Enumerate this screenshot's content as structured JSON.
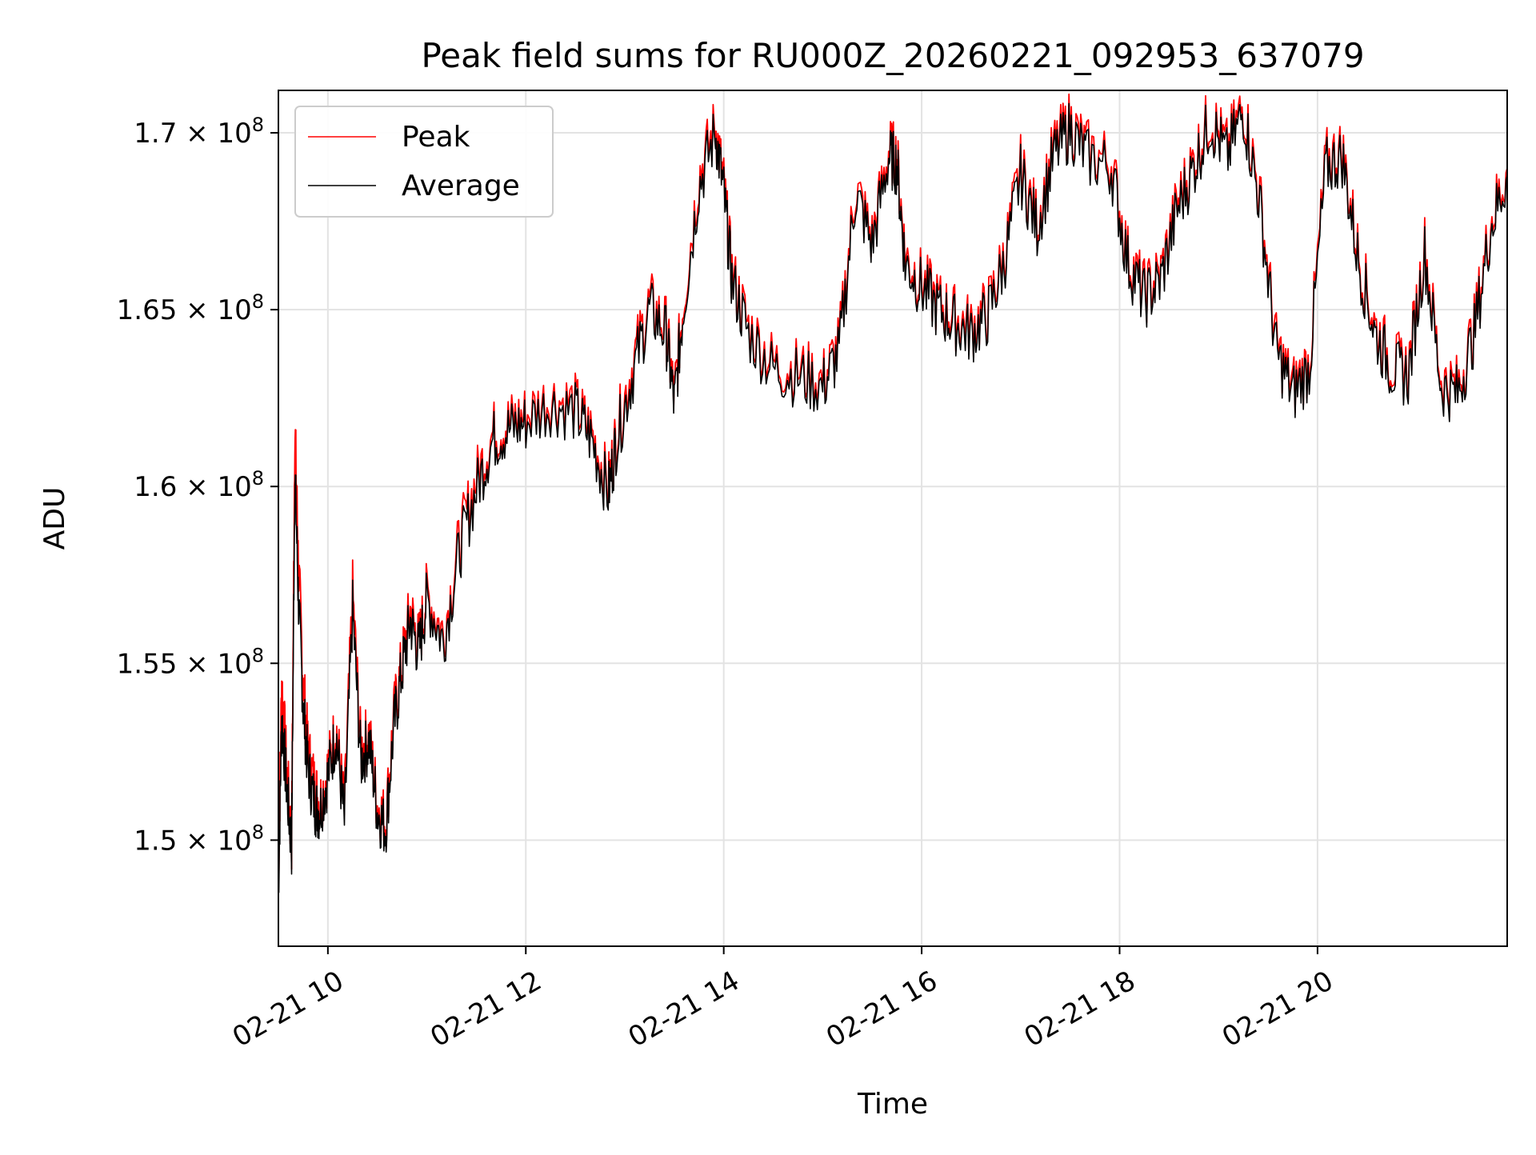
{
  "chart_data": {
    "type": "line",
    "title": "Peak field sums for RU000Z_20260221_092953_637079",
    "xlabel": "Time",
    "ylabel": "ADU",
    "x_type": "datetime",
    "xlim": [
      "2026-02-21 09:30",
      "2026-02-21 21:55"
    ],
    "ylim": [
      147000000,
      171200000
    ],
    "x_ticks": [
      "2026-02-21 10:00",
      "2026-02-21 12:00",
      "2026-02-21 14:00",
      "2026-02-21 16:00",
      "2026-02-21 18:00",
      "2026-02-21 20:00"
    ],
    "x_tick_labels": [
      "02-21 10",
      "02-21 12",
      "02-21 14",
      "02-21 16",
      "02-21 18",
      "02-21 20"
    ],
    "y_ticks": [
      150000000,
      155000000,
      160000000,
      165000000,
      170000000
    ],
    "y_tick_labels": [
      {
        "mantissa": "1.5",
        "exp": "8"
      },
      {
        "mantissa": "1.55",
        "exp": "8"
      },
      {
        "mantissa": "1.6",
        "exp": "8"
      },
      {
        "mantissa": "1.65",
        "exp": "8"
      },
      {
        "mantissa": "1.7",
        "exp": "8"
      }
    ],
    "y_tick_base": "× 10",
    "grid": true,
    "legend_position": "top-left",
    "x": [
      "2026-02-21 09:30",
      "2026-02-21 09:32",
      "2026-02-21 09:35",
      "2026-02-21 09:38",
      "2026-02-21 09:40",
      "2026-02-21 09:42",
      "2026-02-21 09:45",
      "2026-02-21 09:48",
      "2026-02-21 09:52",
      "2026-02-21 09:55",
      "2026-02-21 10:00",
      "2026-02-21 10:05",
      "2026-02-21 10:10",
      "2026-02-21 10:15",
      "2026-02-21 10:20",
      "2026-02-21 10:25",
      "2026-02-21 10:30",
      "2026-02-21 10:35",
      "2026-02-21 10:40",
      "2026-02-21 10:45",
      "2026-02-21 10:50",
      "2026-02-21 10:55",
      "2026-02-21 11:00",
      "2026-02-21 11:10",
      "2026-02-21 11:20",
      "2026-02-21 11:30",
      "2026-02-21 11:40",
      "2026-02-21 11:50",
      "2026-02-21 12:00",
      "2026-02-21 12:15",
      "2026-02-21 12:30",
      "2026-02-21 12:40",
      "2026-02-21 12:50",
      "2026-02-21 12:55",
      "2026-02-21 13:05",
      "2026-02-21 13:15",
      "2026-02-21 13:25",
      "2026-02-21 13:30",
      "2026-02-21 13:35",
      "2026-02-21 13:45",
      "2026-02-21 13:55",
      "2026-02-21 14:00",
      "2026-02-21 14:05",
      "2026-02-21 14:15",
      "2026-02-21 14:30",
      "2026-02-21 14:45",
      "2026-02-21 15:00",
      "2026-02-21 15:10",
      "2026-02-21 15:20",
      "2026-02-21 15:30",
      "2026-02-21 15:40",
      "2026-02-21 15:45",
      "2026-02-21 15:50",
      "2026-02-21 16:00",
      "2026-02-21 16:10",
      "2026-02-21 16:20",
      "2026-02-21 16:30",
      "2026-02-21 16:40",
      "2026-02-21 16:50",
      "2026-02-21 17:00",
      "2026-02-21 17:10",
      "2026-02-21 17:20",
      "2026-02-21 17:30",
      "2026-02-21 17:40",
      "2026-02-21 17:55",
      "2026-02-21 18:05",
      "2026-02-21 18:15",
      "2026-02-21 18:25",
      "2026-02-21 18:35",
      "2026-02-21 18:45",
      "2026-02-21 18:55",
      "2026-02-21 19:05",
      "2026-02-21 19:15",
      "2026-02-21 19:25",
      "2026-02-21 19:35",
      "2026-02-21 19:45",
      "2026-02-21 19:55",
      "2026-02-21 20:05",
      "2026-02-21 20:15",
      "2026-02-21 20:25",
      "2026-02-21 20:35",
      "2026-02-21 20:45",
      "2026-02-21 20:55",
      "2026-02-21 21:05",
      "2026-02-21 21:15",
      "2026-02-21 21:25",
      "2026-02-21 21:35",
      "2026-02-21 21:45",
      "2026-02-21 21:55"
    ],
    "series": [
      {
        "name": "Peak",
        "color": "#ff0000",
        "values": [
          149000000,
          154500000,
          152000000,
          150000000,
          161800000,
          158000000,
          154500000,
          152500000,
          151500000,
          151000000,
          152000000,
          153200000,
          150800000,
          157000000,
          152500000,
          153000000,
          151000000,
          150500000,
          153500000,
          155000000,
          156500000,
          155500000,
          157000000,
          155800000,
          158500000,
          160200000,
          161500000,
          161800000,
          162000000,
          162500000,
          162300000,
          161500000,
          160000000,
          161500000,
          163500000,
          165200000,
          164500000,
          162500000,
          165000000,
          168800000,
          170200000,
          168500000,
          166000000,
          164500000,
          163500000,
          163300000,
          163000000,
          164000000,
          168500000,
          167000000,
          169500000,
          169300000,
          166500000,
          165800000,
          165200000,
          164800000,
          164500000,
          165000000,
          166500000,
          169000000,
          167500000,
          169500000,
          170300000,
          169500000,
          169200000,
          166500000,
          165500000,
          166000000,
          168000000,
          169200000,
          170500000,
          169500000,
          170800000,
          168200000,
          164000000,
          162800000,
          163500000,
          169200000,
          169500000,
          166500000,
          164500000,
          163500000,
          163300000,
          166800000,
          163000000,
          162800000,
          164500000,
          167500000,
          169000000
        ]
      },
      {
        "name": "Average",
        "color": "#000000",
        "values": [
          148500000,
          153500000,
          151500000,
          149800000,
          160500000,
          157000000,
          153800000,
          152000000,
          151000000,
          150800000,
          151800000,
          153000000,
          150500000,
          156500000,
          152200000,
          152800000,
          150800000,
          150300000,
          153200000,
          154800000,
          156200000,
          155300000,
          156800000,
          155600000,
          158200000,
          159900000,
          161300000,
          161600000,
          161800000,
          162300000,
          162100000,
          161300000,
          159800000,
          161300000,
          163200000,
          165000000,
          164300000,
          162300000,
          164800000,
          168500000,
          170000000,
          168300000,
          165800000,
          164300000,
          163300000,
          163100000,
          162800000,
          163800000,
          168300000,
          166800000,
          169300000,
          169100000,
          166300000,
          165600000,
          165000000,
          164600000,
          164300000,
          164800000,
          166300000,
          168800000,
          167300000,
          169300000,
          170100000,
          169300000,
          169000000,
          166300000,
          165300000,
          165800000,
          167800000,
          169000000,
          170300000,
          169300000,
          170600000,
          168000000,
          163800000,
          162600000,
          163300000,
          169000000,
          169300000,
          166300000,
          164300000,
          163300000,
          163100000,
          166600000,
          162800000,
          162600000,
          164300000,
          167300000,
          168800000
        ]
      }
    ]
  }
}
